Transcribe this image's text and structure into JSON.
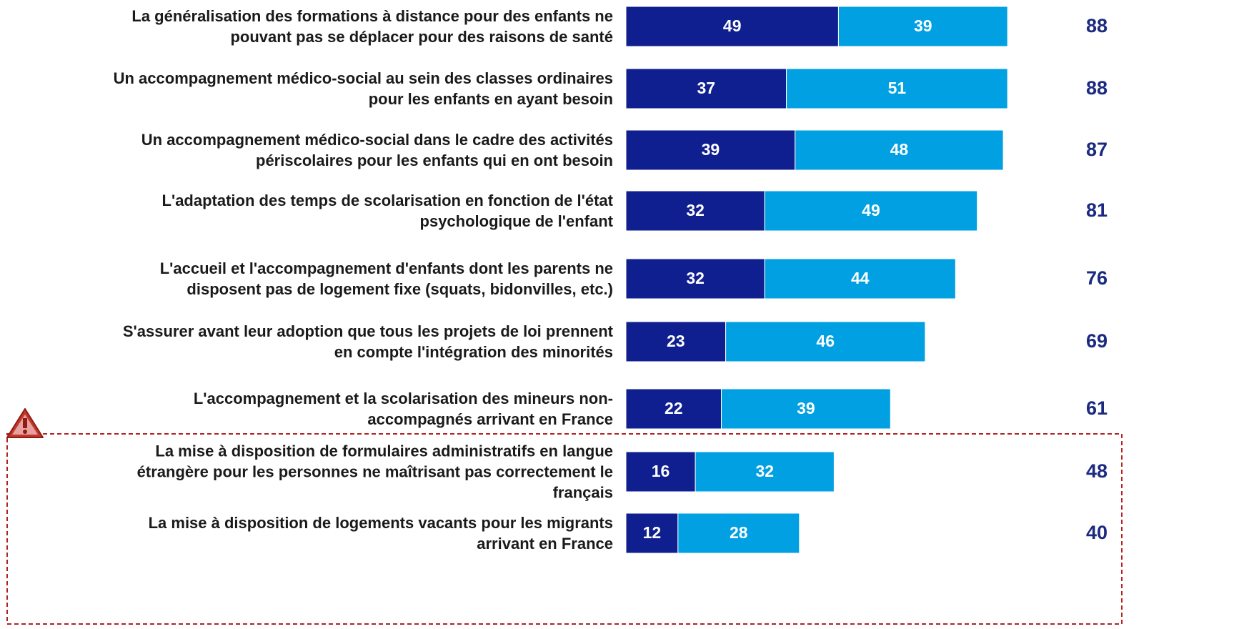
{
  "chart_data": {
    "type": "stacked-bar-horizontal",
    "categories": [
      "La généralisation des formations à distance pour des enfants ne\npouvant pas se déplacer pour des raisons de santé",
      "Un accompagnement médico-social au sein des classes ordinaires\npour les enfants en ayant besoin",
      "Un accompagnement médico-social dans le cadre des activités\npériscolaires pour les enfants qui en ont besoin",
      "L'adaptation des temps de scolarisation en fonction de l'état\npsychologique de l'enfant",
      "L'accueil et l'accompagnement d'enfants dont les parents ne\ndisposent pas de logement fixe (squats, bidonvilles, etc.)",
      "S'assurer avant leur adoption que tous les projets de loi prennent\nen compte l'intégration des minorités",
      "L'accompagnement et la scolarisation des mineurs non-\naccompagnés arrivant en France",
      "La mise à disposition de formulaires administratifs en langue\nétrangère pour les personnes ne maîtrisant pas correctement le\nfrançais",
      "La mise à disposition de logements vacants pour les migrants\narrivant en France"
    ],
    "series": [
      {
        "color": "#0f1f8f",
        "values": [
          49,
          37,
          39,
          32,
          32,
          23,
          22,
          16,
          12
        ]
      },
      {
        "color": "#00a0e2",
        "values": [
          39,
          51,
          48,
          49,
          44,
          46,
          39,
          32,
          28
        ]
      }
    ],
    "totals": [
      88,
      88,
      87,
      81,
      76,
      69,
      61,
      48,
      40
    ],
    "totals_color": "#1b2a80",
    "xlim": [
      0,
      100
    ]
  }
}
